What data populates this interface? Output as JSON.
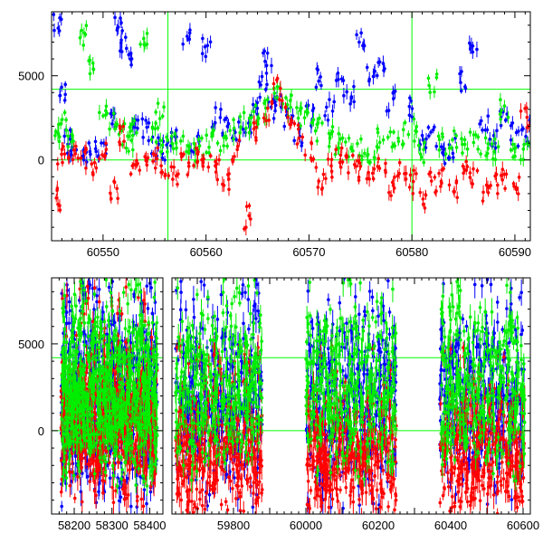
{
  "chart_data": [
    {
      "type": "scatter",
      "title": "",
      "xlabel": "",
      "ylabel": "",
      "xlim": [
        60545,
        60591.5
      ],
      "ylim": [
        -4800,
        8800
      ],
      "x_ticks": [
        60550,
        60560,
        60570,
        60580,
        60590
      ],
      "x_tick_labels": [
        "60550",
        "60560",
        "60570",
        "60580",
        "60590"
      ],
      "y_ticks": [
        0,
        5000
      ],
      "y_tick_labels": [
        "0",
        "5000"
      ],
      "reference_lines": {
        "horizontal": [
          0,
          4200
        ],
        "vertical": [
          60556.3,
          60580
        ],
        "color": "#00ff00"
      },
      "grid": false,
      "legend": "none",
      "series": [
        {
          "color": "#0000ff",
          "x": [
            60545.5,
            60546,
            60546.5,
            60547,
            60548,
            60549,
            60550,
            60551,
            60551.5,
            60552,
            60552.5,
            60553,
            60554,
            60555,
            60556,
            60557,
            60558,
            60559,
            60560,
            60561,
            60562,
            60563,
            60564,
            60565,
            60565.5,
            60566,
            60566.5,
            60567,
            60568,
            60569,
            60570,
            60571,
            60572,
            60573,
            60574,
            60575,
            60576,
            60577,
            60578,
            60580,
            60581,
            60582,
            60583,
            60584,
            60585,
            60586,
            60587,
            60588,
            60589,
            60590,
            60591
          ],
          "y": [
            8100,
            4000,
            1500,
            700,
            300,
            400,
            500,
            2500,
            8400,
            7000,
            6300,
            2200,
            1800,
            900,
            600,
            1200,
            7300,
            1100,
            6800,
            2600,
            1900,
            1800,
            2200,
            3200,
            4500,
            6000,
            2800,
            3800,
            2500,
            1400,
            2700,
            4800,
            2900,
            4500,
            3800,
            7400,
            4900,
            5600,
            3600,
            3200,
            1200,
            1400,
            300,
            800,
            4700,
            6700,
            2200,
            1100,
            2500,
            1500,
            1700
          ]
        },
        {
          "color": "#00ee00",
          "x": [
            60545.5,
            60546,
            60547,
            60548,
            60549,
            60550,
            60551,
            60552,
            60552.5,
            60553,
            60554,
            60555,
            60555.5,
            60556,
            60557,
            60558,
            60559,
            60560,
            60561,
            60562,
            60563,
            60564,
            60565,
            60566,
            60567,
            60568,
            60569,
            60570,
            60571,
            60572,
            60573,
            60574,
            60575,
            60576,
            60577,
            60578,
            60579,
            60580,
            60581,
            60582,
            60583,
            60584,
            60585,
            60586,
            60587,
            60588,
            60589,
            60590,
            60591
          ],
          "y": [
            1500,
            2200,
            1200,
            7500,
            5300,
            3000,
            2200,
            1500,
            900,
            1800,
            7000,
            1300,
            2800,
            1000,
            1300,
            1100,
            600,
            900,
            1200,
            1500,
            1900,
            2200,
            2600,
            2900,
            3800,
            3300,
            2700,
            2300,
            1800,
            1400,
            1000,
            700,
            600,
            400,
            1300,
            1100,
            1600,
            1800,
            400,
            4500,
            900,
            1400,
            600,
            1200,
            900,
            700,
            2900,
            600,
            300
          ]
        },
        {
          "color": "#ff0000",
          "x": [
            60545.5,
            60546,
            60547,
            60548,
            60549,
            60550,
            60551,
            60552,
            60553,
            60554,
            60555,
            60556,
            60557,
            60558,
            60559,
            60560,
            60561,
            60562,
            60563,
            60564,
            60565,
            60566,
            60567,
            60568,
            60569,
            60570,
            60571,
            60572,
            60573,
            60574,
            60575,
            60576,
            60577,
            60578,
            60579,
            60580,
            60581,
            60582,
            60583,
            60584,
            60585,
            60586,
            60587,
            60588,
            60589,
            60590,
            60591
          ],
          "y": [
            -2300,
            300,
            400,
            100,
            -200,
            300,
            -1900,
            1500,
            -500,
            -100,
            200,
            -400,
            -800,
            -300,
            0,
            200,
            -600,
            -1500,
            600,
            -3400,
            1700,
            2900,
            4200,
            2500,
            1600,
            600,
            -1100,
            -500,
            200,
            -400,
            -700,
            -1200,
            -200,
            -1600,
            -800,
            -1300,
            -2600,
            -1400,
            -1000,
            -1800,
            -600,
            -1200,
            -2000,
            -1500,
            -1100,
            -1600,
            2600
          ]
        }
      ]
    },
    {
      "type": "scatter",
      "title": "",
      "xlabel": "",
      "ylabel": "",
      "y_ticks": [
        0,
        5000
      ],
      "y_tick_labels": [
        "0",
        "5000"
      ],
      "ylim": [
        -4800,
        8800
      ],
      "reference_lines": {
        "horizontal": [
          0,
          4200
        ],
        "color": "#00ff00"
      },
      "grid": false,
      "legend": "none",
      "panels": [
        {
          "xlim": [
            58140,
            58435
          ],
          "x_ticks": [
            58200,
            58300,
            58400
          ],
          "x_tick_labels": [
            "58200",
            "58300",
            "58400"
          ],
          "series": [
            {
              "color": "#0000ff",
              "x_range": [
                58165,
                58420
              ],
              "y_spread": [
                -4400,
                8600
              ],
              "center": 1600
            },
            {
              "color": "#ff0000",
              "x_range": [
                58165,
                58420
              ],
              "y_spread": [
                -4400,
                8600
              ],
              "center": 500
            },
            {
              "color": "#00ee00",
              "x_range": [
                58165,
                58420
              ],
              "y_spread": [
                -1200,
                8800
              ],
              "center": 1900
            }
          ]
        },
        {
          "xlim": [
            59630,
            60620
          ],
          "x_ticks": [
            59800,
            60000,
            60200,
            60400,
            60600
          ],
          "x_tick_labels": [
            "59800",
            "60000",
            "60200",
            "60400",
            "60600"
          ],
          "windows": [
            [
              59640,
              59880
            ],
            [
              60000,
              60250
            ],
            [
              60370,
              60605
            ]
          ],
          "series": [
            {
              "color": "#0000ff",
              "x_range": [
                59640,
                60605
              ],
              "y_spread": [
                -4600,
                8800
              ],
              "center": 1800
            },
            {
              "color": "#ff0000",
              "x_range": [
                59640,
                60605
              ],
              "y_spread": [
                -4800,
                5000
              ],
              "center": -1200
            },
            {
              "color": "#00ee00",
              "x_range": [
                59640,
                60605
              ],
              "y_spread": [
                -1500,
                8800
              ],
              "center": 2200
            }
          ]
        }
      ]
    }
  ]
}
